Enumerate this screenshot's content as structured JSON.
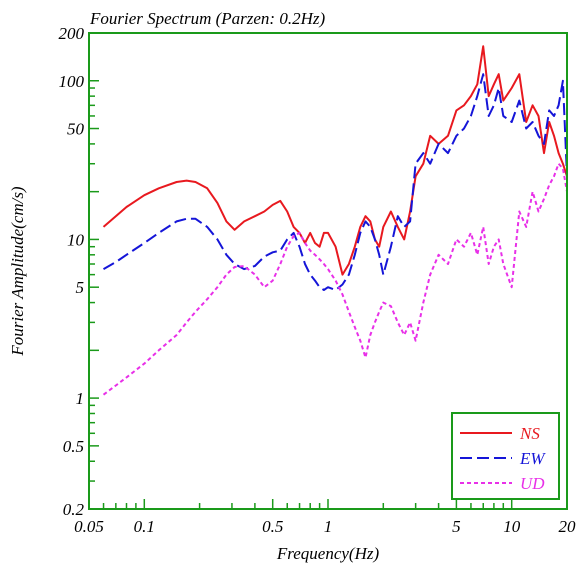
{
  "chart_data": {
    "type": "line",
    "title": "Fourier Spectrum (Parzen: 0.2Hz)",
    "xlabel": "Frequency(Hz)",
    "ylabel": "Fourier Amplitude(cm/s)",
    "x_scale": "log",
    "y_scale": "log",
    "xlim": [
      0.05,
      20
    ],
    "ylim": [
      0.2,
      200
    ],
    "x_ticks": [
      {
        "value": 0.05,
        "label": "0.05"
      },
      {
        "value": 0.1,
        "label": "0.1"
      },
      {
        "value": 0.5,
        "label": "0.5"
      },
      {
        "value": 1,
        "label": "1"
      },
      {
        "value": 5,
        "label": "5"
      },
      {
        "value": 10,
        "label": "10"
      },
      {
        "value": 20,
        "label": "20"
      }
    ],
    "y_ticks": [
      {
        "value": 0.2,
        "label": "0.2"
      },
      {
        "value": 0.5,
        "label": "0.5"
      },
      {
        "value": 1,
        "label": "1"
      },
      {
        "value": 5,
        "label": "5"
      },
      {
        "value": 10,
        "label": "10"
      },
      {
        "value": 50,
        "label": "50"
      },
      {
        "value": 100,
        "label": "100"
      },
      {
        "value": 200,
        "label": "200"
      }
    ],
    "grid": false,
    "legend_position": "bottom-right",
    "series": [
      {
        "name": "NS",
        "color": "#e8191f",
        "dash": "solid",
        "x": [
          0.06,
          0.07,
          0.08,
          0.1,
          0.12,
          0.15,
          0.17,
          0.19,
          0.22,
          0.25,
          0.28,
          0.31,
          0.35,
          0.4,
          0.45,
          0.5,
          0.55,
          0.6,
          0.65,
          0.7,
          0.75,
          0.8,
          0.85,
          0.9,
          0.95,
          1.0,
          1.1,
          1.2,
          1.3,
          1.4,
          1.5,
          1.6,
          1.7,
          1.8,
          1.9,
          2.0,
          2.2,
          2.4,
          2.6,
          2.8,
          3.0,
          3.3,
          3.6,
          4.0,
          4.5,
          5.0,
          5.5,
          6.0,
          6.5,
          7.0,
          7.5,
          8.0,
          8.5,
          9.0,
          10.0,
          11.0,
          12.0,
          13.0,
          14.0,
          15.0,
          16.0,
          17.0,
          18.0,
          19.0,
          20.0
        ],
        "y": [
          12,
          14,
          16,
          19,
          21,
          23,
          23.5,
          23,
          21,
          17,
          13,
          11.5,
          13,
          14,
          15,
          16.5,
          17.5,
          15,
          12,
          11,
          9.5,
          11,
          9.5,
          9,
          11,
          11,
          9,
          6,
          7,
          9,
          12,
          14,
          13,
          10,
          9,
          12,
          15,
          12,
          10,
          15,
          25,
          30,
          45,
          40,
          45,
          65,
          70,
          80,
          95,
          165,
          80,
          95,
          110,
          75,
          90,
          110,
          55,
          70,
          60,
          35,
          55,
          45,
          35,
          30,
          25
        ]
      },
      {
        "name": "EW",
        "color": "#1515d8",
        "dash": "dashed",
        "x": [
          0.06,
          0.07,
          0.08,
          0.1,
          0.12,
          0.15,
          0.17,
          0.19,
          0.22,
          0.25,
          0.28,
          0.31,
          0.35,
          0.4,
          0.45,
          0.5,
          0.55,
          0.6,
          0.65,
          0.7,
          0.75,
          0.8,
          0.85,
          0.9,
          0.95,
          1.0,
          1.1,
          1.2,
          1.3,
          1.4,
          1.5,
          1.6,
          1.7,
          1.8,
          1.9,
          2.0,
          2.2,
          2.4,
          2.6,
          2.8,
          3.0,
          3.3,
          3.6,
          4.0,
          4.5,
          5.0,
          5.5,
          6.0,
          6.5,
          7.0,
          7.5,
          8.0,
          8.5,
          9.0,
          10.0,
          11.0,
          12.0,
          13.0,
          14.0,
          15.0,
          16.0,
          17.0,
          18.0,
          19.0,
          20.0
        ],
        "y": [
          6.5,
          7.2,
          8,
          9.5,
          11,
          13,
          13.5,
          13.5,
          12,
          10,
          8,
          7,
          6.5,
          6.8,
          7.8,
          8.3,
          8.5,
          10,
          11,
          9,
          7,
          6,
          5.5,
          5,
          4.8,
          5,
          4.8,
          5.2,
          6,
          8,
          11,
          13,
          12,
          10,
          8,
          6,
          9,
          14,
          12,
          13,
          30,
          35,
          30,
          40,
          35,
          45,
          50,
          60,
          80,
          110,
          60,
          70,
          90,
          60,
          55,
          75,
          50,
          55,
          45,
          40,
          65,
          60,
          70,
          100,
          25
        ]
      },
      {
        "name": "UD",
        "color": "#e830e8",
        "dash": "dotted",
        "x": [
          0.06,
          0.07,
          0.08,
          0.1,
          0.12,
          0.15,
          0.17,
          0.19,
          0.22,
          0.25,
          0.28,
          0.31,
          0.35,
          0.4,
          0.45,
          0.5,
          0.55,
          0.6,
          0.65,
          0.7,
          0.75,
          0.8,
          0.85,
          0.9,
          0.95,
          1.0,
          1.1,
          1.2,
          1.3,
          1.4,
          1.5,
          1.6,
          1.7,
          1.8,
          1.9,
          2.0,
          2.2,
          2.4,
          2.6,
          2.8,
          3.0,
          3.3,
          3.6,
          4.0,
          4.5,
          5.0,
          5.5,
          6.0,
          6.5,
          7.0,
          7.5,
          8.0,
          8.5,
          9.0,
          10.0,
          11.0,
          12.0,
          13.0,
          14.0,
          15.0,
          16.0,
          17.0,
          18.0,
          19.0,
          20.0
        ],
        "y": [
          1.05,
          1.2,
          1.35,
          1.65,
          2.0,
          2.5,
          3.0,
          3.5,
          4.2,
          5.0,
          6.0,
          6.7,
          6.8,
          6.0,
          5.0,
          5.5,
          7.0,
          9.0,
          10.5,
          11,
          9.5,
          8.5,
          8.0,
          7.5,
          7.0,
          6.5,
          5.5,
          4.5,
          3.5,
          2.8,
          2.3,
          1.8,
          2.5,
          3.0,
          3.5,
          4.0,
          3.8,
          3.0,
          2.5,
          3.0,
          2.3,
          4.0,
          6.0,
          8.0,
          7.0,
          10,
          9,
          11,
          8,
          12,
          7,
          9,
          10,
          7,
          5,
          15,
          12,
          20,
          15,
          18,
          22,
          25,
          30,
          28,
          20
        ]
      }
    ]
  }
}
